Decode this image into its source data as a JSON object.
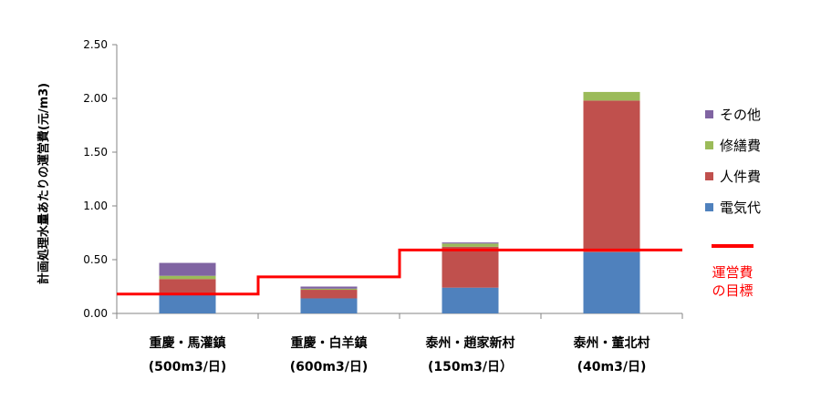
{
  "chart_data": {
    "type": "bar",
    "stacked": true,
    "categories": [
      [
        "重慶・馬灌鎮",
        "(500m3/日)"
      ],
      [
        "重慶・白羊鎮",
        "(600m3/日)"
      ],
      [
        "泰州・趙家新村",
        "(150m3/日）"
      ],
      [
        "泰州・董北村",
        "(40m3/日)"
      ]
    ],
    "series": [
      {
        "name": "電気代",
        "color": "#4f81bd",
        "values": [
          0.17,
          0.14,
          0.24,
          0.57
        ]
      },
      {
        "name": "人件費",
        "color": "#c0504d",
        "values": [
          0.15,
          0.08,
          0.38,
          1.41
        ]
      },
      {
        "name": "修繕費",
        "color": "#9bbb59",
        "values": [
          0.03,
          0.01,
          0.03,
          0.08
        ]
      },
      {
        "name": "その他",
        "color": "#8064a2",
        "values": [
          0.12,
          0.02,
          0.01,
          0.0
        ]
      }
    ],
    "target": {
      "label": [
        "運営費",
        "の目標"
      ],
      "color": "#ff0000",
      "values": [
        0.18,
        0.34,
        0.59,
        0.59
      ]
    },
    "ylabel": "計画処理水量あたりの運営費(元/m3)",
    "ylim": [
      0,
      2.5
    ],
    "yticks": [
      "0.00",
      "0.50",
      "1.00",
      "1.50",
      "2.00",
      "2.50"
    ],
    "grid": false,
    "legend_position": "right"
  }
}
